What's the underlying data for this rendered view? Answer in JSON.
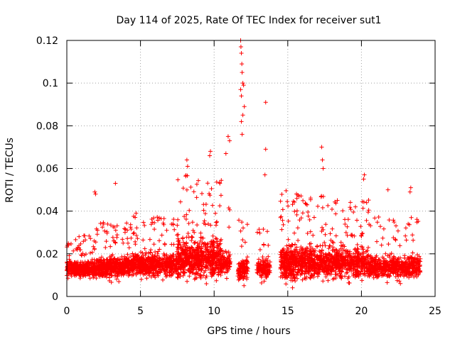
{
  "chart_data": {
    "type": "scatter",
    "title": "Day 114 of 2025, Rate Of TEC Index for receiver sut1",
    "xlabel": "GPS time / hours",
    "ylabel": "ROTI / TECUs",
    "xlim": [
      0,
      25
    ],
    "ylim": [
      0,
      0.12
    ],
    "xticks": [
      0,
      5,
      10,
      15,
      20,
      25
    ],
    "xtick_labels": [
      "0",
      "5",
      "10",
      "15",
      "20",
      "25"
    ],
    "yticks": [
      0,
      0.02,
      0.04,
      0.06,
      0.08,
      0.1,
      0.12
    ],
    "ytick_labels": [
      "0",
      "0.02",
      "0.04",
      "0.06",
      "0.08",
      "0.1",
      "0.12"
    ],
    "grid": true,
    "marker": "+",
    "series": [
      {
        "name": "ROTI",
        "color": "#ff0000",
        "notable_points": [
          {
            "x": 1.9,
            "y": 0.049
          },
          {
            "x": 1.95,
            "y": 0.048
          },
          {
            "x": 3.3,
            "y": 0.053
          },
          {
            "x": 4.7,
            "y": 0.039
          },
          {
            "x": 8.15,
            "y": 0.064
          },
          {
            "x": 8.2,
            "y": 0.061
          },
          {
            "x": 9.75,
            "y": 0.068
          },
          {
            "x": 9.7,
            "y": 0.066
          },
          {
            "x": 10.8,
            "y": 0.067
          },
          {
            "x": 10.95,
            "y": 0.075
          },
          {
            "x": 11.05,
            "y": 0.073
          },
          {
            "x": 11.8,
            "y": 0.12
          },
          {
            "x": 11.82,
            "y": 0.117
          },
          {
            "x": 11.85,
            "y": 0.114
          },
          {
            "x": 11.88,
            "y": 0.109
          },
          {
            "x": 11.9,
            "y": 0.105
          },
          {
            "x": 11.95,
            "y": 0.1
          },
          {
            "x": 12.0,
            "y": 0.099
          },
          {
            "x": 11.8,
            "y": 0.097
          },
          {
            "x": 11.85,
            "y": 0.094
          },
          {
            "x": 12.05,
            "y": 0.089
          },
          {
            "x": 11.95,
            "y": 0.085
          },
          {
            "x": 11.85,
            "y": 0.082
          },
          {
            "x": 11.9,
            "y": 0.076
          },
          {
            "x": 13.5,
            "y": 0.091
          },
          {
            "x": 13.5,
            "y": 0.069
          },
          {
            "x": 13.45,
            "y": 0.057
          },
          {
            "x": 17.3,
            "y": 0.07
          },
          {
            "x": 17.35,
            "y": 0.064
          },
          {
            "x": 17.4,
            "y": 0.06
          },
          {
            "x": 20.2,
            "y": 0.057
          },
          {
            "x": 20.15,
            "y": 0.055
          },
          {
            "x": 21.8,
            "y": 0.05
          },
          {
            "x": 23.35,
            "y": 0.051
          },
          {
            "x": 23.3,
            "y": 0.049
          }
        ],
        "baseline_segments": [
          {
            "x_range": [
              0,
              2
            ],
            "y_center": 0.013,
            "y_spread": 0.006,
            "density": 420
          },
          {
            "x_range": [
              2,
              4.5
            ],
            "y_center": 0.014,
            "y_spread": 0.008,
            "density": 520
          },
          {
            "x_range": [
              4.5,
              7.5
            ],
            "y_center": 0.015,
            "y_spread": 0.009,
            "density": 560
          },
          {
            "x_range": [
              7.5,
              10.5
            ],
            "y_center": 0.018,
            "y_spread": 0.015,
            "density": 700
          },
          {
            "x_range": [
              10.5,
              11.1
            ],
            "y_center": 0.016,
            "y_spread": 0.01,
            "density": 90
          },
          {
            "x_range": [
              11.6,
              12.3
            ],
            "y_center": 0.013,
            "y_spread": 0.009,
            "density": 120
          },
          {
            "x_range": [
              12.9,
              13.8
            ],
            "y_center": 0.013,
            "y_spread": 0.008,
            "density": 130
          },
          {
            "x_range": [
              14.5,
              16.5
            ],
            "y_center": 0.016,
            "y_spread": 0.013,
            "density": 480
          },
          {
            "x_range": [
              16.5,
              20.5
            ],
            "y_center": 0.016,
            "y_spread": 0.012,
            "density": 760
          },
          {
            "x_range": [
              20.5,
              24
            ],
            "y_center": 0.014,
            "y_spread": 0.009,
            "density": 560
          }
        ]
      }
    ]
  }
}
